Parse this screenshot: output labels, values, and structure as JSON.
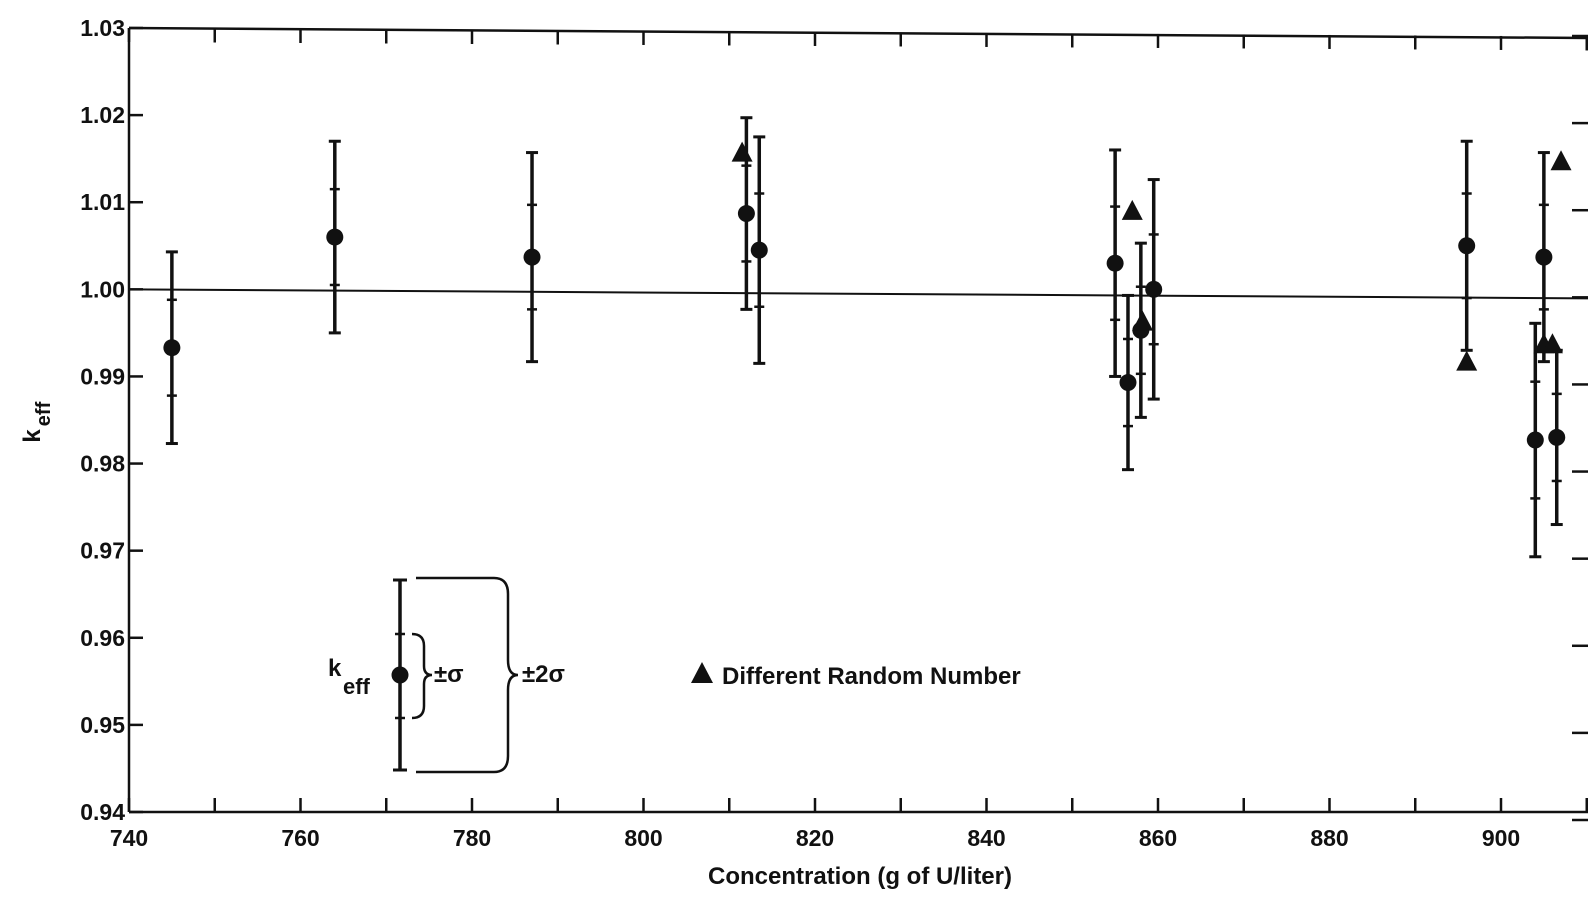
{
  "chart_data": {
    "type": "scatter",
    "title": "",
    "xlabel": "Concentration (g of U/liter)",
    "ylabel_main": "k",
    "ylabel_sub": "eff",
    "xlim": [
      740,
      910
    ],
    "ylim": [
      0.94,
      1.03
    ],
    "x_ticks": [
      740,
      760,
      780,
      800,
      820,
      840,
      860,
      880,
      900
    ],
    "y_ticks": [
      "0.94",
      "0.95",
      "0.96",
      "0.97",
      "0.98",
      "0.99",
      "1.00",
      "1.01",
      "1.02",
      "1.03"
    ],
    "reference_line_y": 1.0,
    "grid": false,
    "series": [
      {
        "marker": "circle",
        "points": [
          {
            "x": 745.0,
            "y": 0.9933,
            "sigma": 0.0055
          },
          {
            "x": 764.0,
            "y": 1.006,
            "sigma": 0.0055
          },
          {
            "x": 787.0,
            "y": 1.0037,
            "sigma": 0.006
          },
          {
            "x": 812.0,
            "y": 1.0087,
            "sigma": 0.0055
          },
          {
            "x": 813.5,
            "y": 1.0045,
            "sigma": 0.0065
          },
          {
            "x": 855.0,
            "y": 1.003,
            "sigma": 0.0065
          },
          {
            "x": 856.5,
            "y": 0.9893,
            "sigma": 0.005
          },
          {
            "x": 858.0,
            "y": 0.9953,
            "sigma": 0.005
          },
          {
            "x": 859.5,
            "y": 1.0,
            "sigma": 0.0063
          },
          {
            "x": 896.0,
            "y": 1.005,
            "sigma": 0.006
          },
          {
            "x": 904.0,
            "y": 0.9827,
            "sigma": 0.0067
          },
          {
            "x": 905.0,
            "y": 1.0037,
            "sigma": 0.006
          },
          {
            "x": 906.5,
            "y": 0.983,
            "sigma": 0.005
          }
        ]
      },
      {
        "name": "Different Random Number",
        "marker": "triangle",
        "points": [
          {
            "x": 811.5,
            "y": 1.0157
          },
          {
            "x": 857.0,
            "y": 1.009
          },
          {
            "x": 858.2,
            "y": 0.9963
          },
          {
            "x": 896.0,
            "y": 0.9917
          },
          {
            "x": 905.0,
            "y": 0.9937
          },
          {
            "x": 906.0,
            "y": 0.9937
          },
          {
            "x": 907.0,
            "y": 1.0147
          }
        ]
      }
    ],
    "legend": {
      "keff_main": "k",
      "keff_sub": "eff",
      "sigma_label": "±σ",
      "two_sigma_label": "±2σ",
      "triangle_label": "Different Random Number"
    }
  }
}
